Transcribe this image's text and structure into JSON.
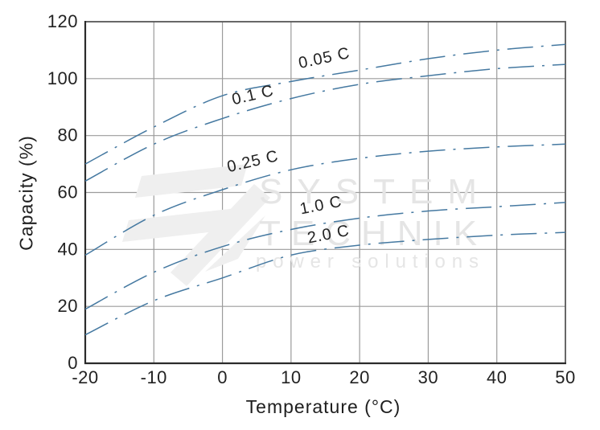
{
  "watermark": {
    "line1": "SYSTEM",
    "line2": "TECHNIK",
    "line3": "power solutions",
    "text_color": "#e5e5e5",
    "logo_color": "#efefef"
  },
  "chart_data": {
    "type": "line",
    "title": "",
    "xlabel": "Temperature (°C)",
    "ylabel": "Capacity (%)",
    "xlim": [
      -20,
      50
    ],
    "ylim": [
      0,
      120
    ],
    "grid": true,
    "legend_position": "inline-labels",
    "x_ticks": [
      -20,
      -10,
      0,
      10,
      20,
      30,
      40,
      50
    ],
    "y_ticks": [
      0,
      20,
      40,
      60,
      80,
      100,
      120
    ],
    "x_tick_labels": [
      "-20",
      "-10",
      "0",
      "10",
      "20",
      "30",
      "40",
      "50"
    ],
    "y_tick_labels": [
      "0",
      "20",
      "40",
      "60",
      "80",
      "100",
      "120"
    ],
    "x": [
      -20,
      -10,
      0,
      10,
      20,
      30,
      40,
      50
    ],
    "series": [
      {
        "name": "0.05 C",
        "values": [
          70,
          83,
          94,
          99,
          103,
          107,
          110,
          112
        ],
        "label_at": {
          "x": 15,
          "y": 105.5,
          "angle": -12
        }
      },
      {
        "name": "0.1 C",
        "values": [
          64,
          77,
          86,
          93,
          98,
          101,
          103.5,
          105
        ],
        "label_at": {
          "x": 4.6,
          "y": 92.5,
          "angle": -13
        }
      },
      {
        "name": "0.25 C",
        "values": [
          38,
          52,
          61,
          68,
          72,
          74.5,
          76,
          77
        ],
        "label_at": {
          "x": 4.6,
          "y": 69.2,
          "angle": -13
        }
      },
      {
        "name": "1.0 C",
        "values": [
          19,
          32,
          41,
          47,
          51,
          53.5,
          55,
          56.5
        ],
        "label_at": {
          "x": 14.5,
          "y": 53.8,
          "angle": -11
        }
      },
      {
        "name": "2.0 C",
        "values": [
          10,
          22,
          30,
          38,
          41.5,
          43.5,
          45,
          46
        ],
        "label_at": {
          "x": 15.6,
          "y": 43.6,
          "angle": -11
        }
      }
    ],
    "line_color": "#4579a1",
    "line_style": "dash-dot",
    "grid_color": "#9b9b9b",
    "outer_border_color": "#5a5a5a",
    "spine_color": "#2b2b2b",
    "text_color": "#222222",
    "curve_label_font_px": 20,
    "tick_font_px": 22
  }
}
